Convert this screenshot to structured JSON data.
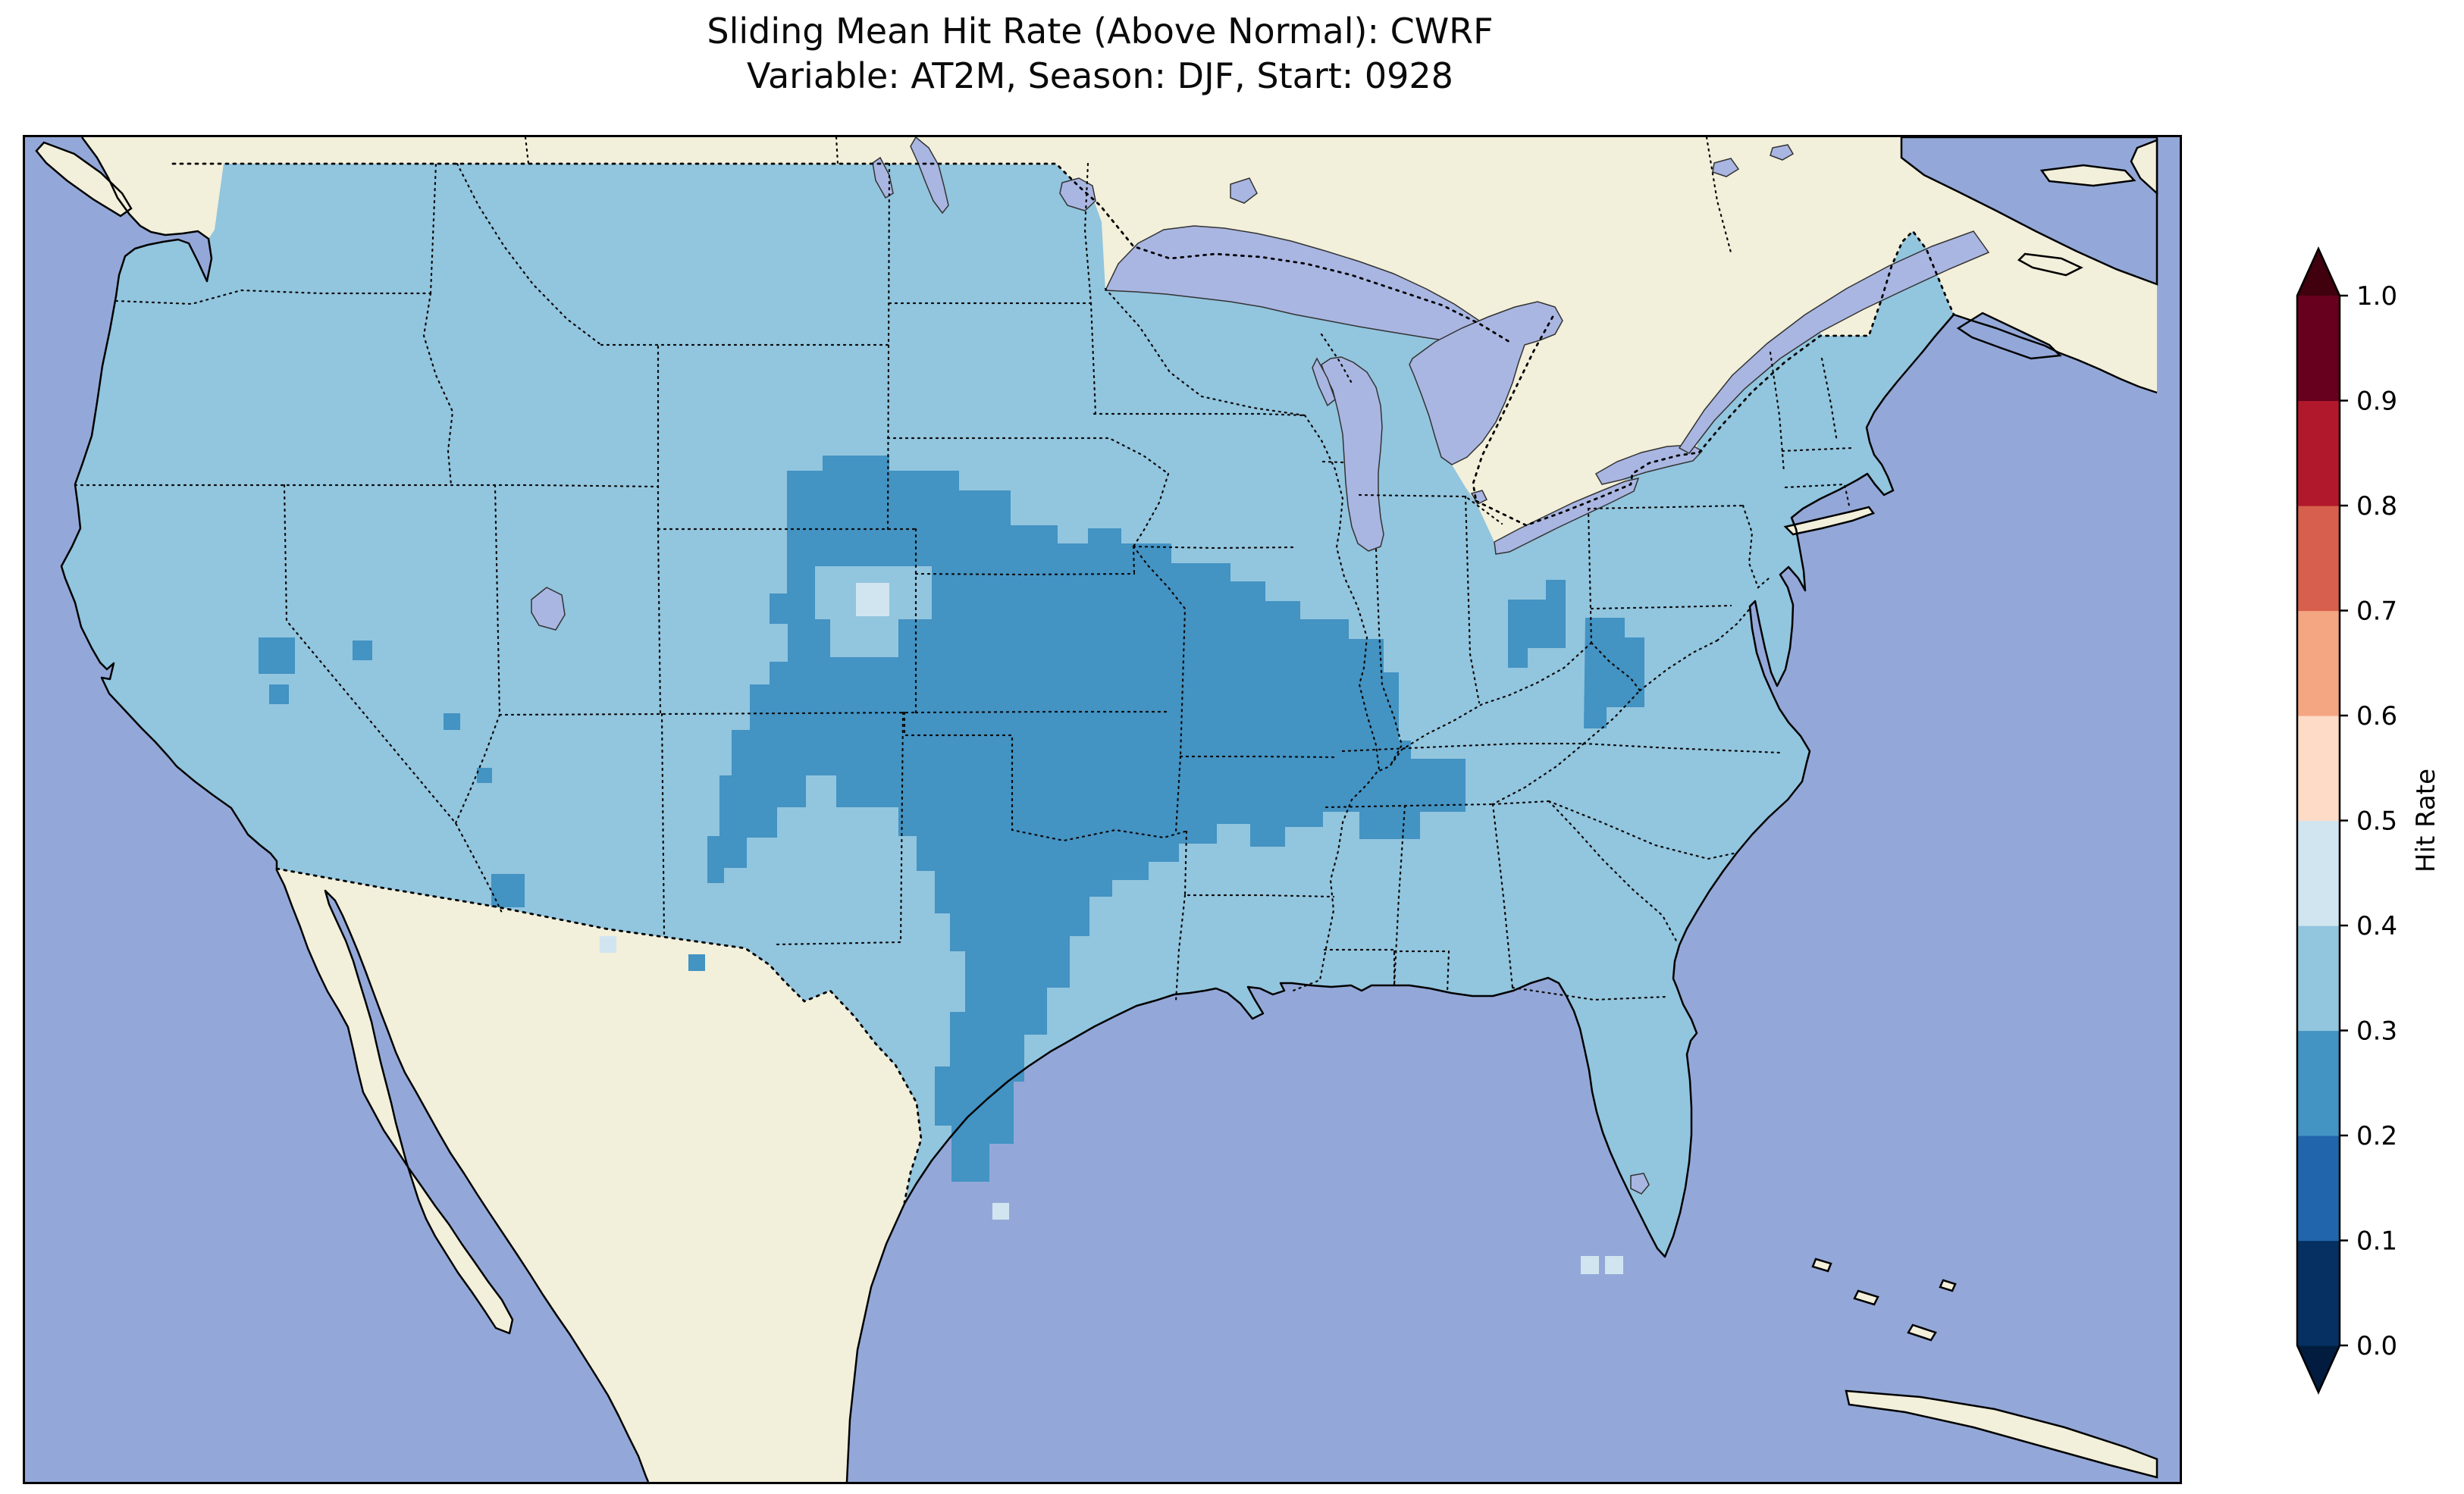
{
  "title": {
    "line1": "Sliding Mean Hit Rate (Above Normal): CWRF",
    "line2": "Variable: AT2M, Season: DJF, Start: 0928"
  },
  "colorbar": {
    "label": "Hit Rate",
    "tick_labels": [
      "1.0",
      "0.9",
      "0.8",
      "0.7",
      "0.6",
      "0.5",
      "0.4",
      "0.3",
      "0.2",
      "0.1",
      "0.0"
    ],
    "bin_colors_bottom_to_top": [
      "#053061",
      "#2166ac",
      "#4393c3",
      "#92c5de",
      "#d1e5f0",
      "#fddbc7",
      "#f4a582",
      "#d6604d",
      "#b2182b",
      "#67001f"
    ],
    "under_arrow_color": "#021c3f",
    "over_arrow_color": "#40000d"
  },
  "map_colors": {
    "ocean": "#93a8d8",
    "land": "#f2efda",
    "lakes": "#a9b6e2",
    "coastline": "#000000",
    "borders": "#0a0a0a"
  },
  "chart_data": {
    "type": "heatmap",
    "subtype": "choropleth_map",
    "title": "Sliding Mean Hit Rate (Above Normal): CWRF",
    "subtitle": "Variable: AT2M, Season: DJF, Start: 0928",
    "model": "CWRF",
    "variable": "AT2M",
    "season": "DJF",
    "start": "0928",
    "colorbar_label": "Hit Rate",
    "colorbar_range": [
      0.0,
      1.0
    ],
    "colorbar_ticks": [
      0.0,
      0.1,
      0.2,
      0.3,
      0.4,
      0.5,
      0.6,
      0.7,
      0.8,
      0.9,
      1.0
    ],
    "colorbar_extend": "both",
    "colormap": "RdBu_r discrete, 0.1-wide bins",
    "map_extent": "Contiguous United States with southern Canada, Mexico/Baja California, Gulf of Mexico, Cuba/Bahamas",
    "regions": [
      {
        "area": "Most of the contiguous United States",
        "hit_rate_bin": "0.3-0.4"
      },
      {
        "area": "Central Plains and mid-Mississippi valley (NE, KS, OK, MO, IA, w. IL, n./c. TX, se. CO)",
        "hit_rate_bin": "0.2-0.3"
      },
      {
        "area": "Ohio valley patch (s. IN / s.-n. OH) and West Virginia patch",
        "hit_rate_bin": "0.2-0.3"
      },
      {
        "area": "Scattered small cells in NV, UT, AZ border area",
        "hit_rate_bin": "0.2-0.3"
      },
      {
        "area": "Small hole in SD/NE border area, cells near s. TX coast and s. FL",
        "hit_rate_bin": "0.4-0.5"
      },
      {
        "area": "Canada and Mexico",
        "hit_rate_bin": "no data (land color)"
      }
    ],
    "grid_resolution_hint": "about 1-degree blocky cells",
    "legend_position": "right vertical colorbar"
  }
}
